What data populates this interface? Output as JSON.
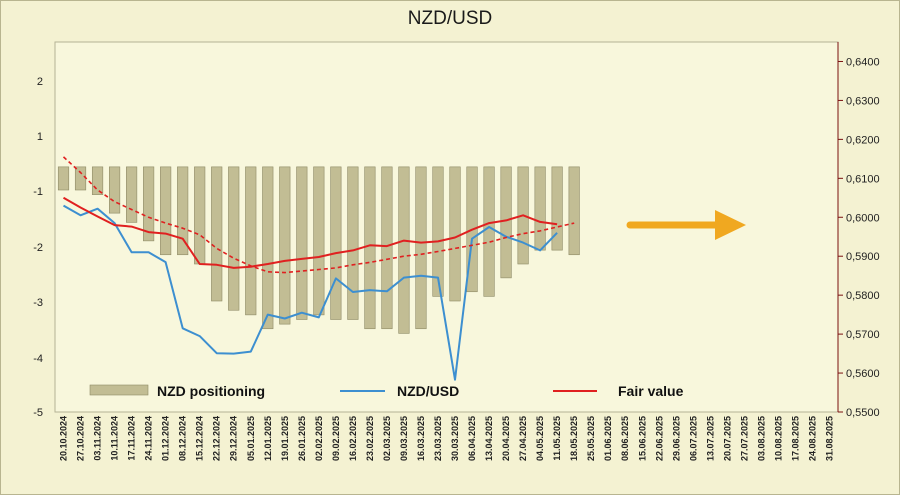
{
  "chart_data": {
    "type": "bar+line",
    "title": "NZD/USD",
    "x_dates": [
      "20.10.2024",
      "27.10.2024",
      "03.11.2024",
      "10.11.2024",
      "17.11.2024",
      "24.11.2024",
      "01.12.2024",
      "08.12.2024",
      "15.12.2024",
      "22.12.2024",
      "29.12.2024",
      "05.01.2025",
      "12.01.2025",
      "19.01.2025",
      "26.01.2025",
      "02.02.2025",
      "09.02.2025",
      "16.02.2025",
      "23.02.2025",
      "02.03.2025",
      "09.03.2025",
      "16.03.2025",
      "23.03.2025",
      "30.03.2025",
      "06.04.2025",
      "13.04.2025",
      "20.04.2025",
      "27.04.2025",
      "04.05.2025",
      "11.05.2025",
      "18.05.2025",
      "25.05.2025",
      "01.06.2025",
      "08.06.2025",
      "15.06.2025",
      "22.06.2025",
      "29.06.2025",
      "06.07.2025",
      "13.07.2025",
      "20.07.2025",
      "27.07.2025",
      "03.08.2025",
      "10.08.2025",
      "17.08.2025",
      "24.08.2025",
      "31.08.2025"
    ],
    "left_axis": {
      "min": -5,
      "max": 3,
      "ticks": [
        "2",
        "1",
        "-1",
        "-2",
        "-3",
        "-4",
        "-5"
      ]
    },
    "right_axis": {
      "min": 0.55,
      "max": 0.645,
      "ticks": [
        "0,6400",
        "0,6300",
        "0,6200",
        "0,6100",
        "0,6000",
        "0,5900",
        "0,5800",
        "0,5700",
        "0,5600",
        "0,5500"
      ]
    },
    "series": [
      {
        "name": "NZD positioning",
        "type": "bar",
        "axis": "left",
        "color": "#c2bd94",
        "values": [
          -0.2,
          -0.2,
          -0.3,
          -0.7,
          -0.9,
          -1.3,
          -1.6,
          -1.6,
          -1.8,
          -2.6,
          -2.8,
          -2.9,
          -3.2,
          -3.1,
          -3.0,
          -2.9,
          -3.0,
          -3.0,
          -3.2,
          -3.2,
          -3.3,
          -3.2,
          -2.5,
          -2.6,
          -2.4,
          -2.5,
          -2.1,
          -1.8,
          -1.5,
          -1.5,
          -1.6
        ]
      },
      {
        "name": "NZD/USD",
        "type": "line",
        "axis": "right",
        "color": "#3d8fd0",
        "values": [
          0.603,
          0.6005,
          0.6022,
          0.5985,
          0.591,
          0.591,
          0.5885,
          0.5715,
          0.5695,
          0.5651,
          0.565,
          0.5655,
          0.575,
          0.574,
          0.5755,
          0.5743,
          0.5843,
          0.5808,
          0.5813,
          0.581,
          0.5845,
          0.585,
          0.5845,
          0.5583,
          0.5945,
          0.5975,
          0.595,
          0.5935,
          0.5915,
          0.596
        ]
      },
      {
        "name": "Fair value",
        "type": "line",
        "axis": "right",
        "color": "#e02020",
        "values": [
          0.605,
          0.6025,
          0.6002,
          0.598,
          0.5976,
          0.5962,
          0.5958,
          0.5945,
          0.588,
          0.5878,
          0.587,
          0.5873,
          0.588,
          0.5888,
          0.5893,
          0.5898,
          0.5908,
          0.5915,
          0.5928,
          0.5926,
          0.594,
          0.5935,
          0.5938,
          0.5948,
          0.5968,
          0.5985,
          0.5992,
          0.6005,
          0.5988,
          0.5982
        ]
      },
      {
        "name": "Fair value (dashed)",
        "type": "line",
        "axis": "right",
        "color": "#e02020",
        "dashed": true,
        "values": [
          0.6155,
          0.6115,
          0.607,
          0.604,
          0.602,
          0.6,
          0.5985,
          0.5972,
          0.5955,
          0.592,
          0.5895,
          0.5875,
          0.586,
          0.5858,
          0.5862,
          0.5866,
          0.587,
          0.5878,
          0.5884,
          0.5892,
          0.59,
          0.5905,
          0.5912,
          0.592,
          0.5928,
          0.5936,
          0.5948,
          0.5958,
          0.5965,
          0.5975,
          0.5985
        ]
      }
    ],
    "legend": [
      {
        "name": "NZD positioning",
        "type": "bar"
      },
      {
        "name": "NZD/USD",
        "type": "line"
      },
      {
        "name": "Fair value",
        "type": "line"
      }
    ],
    "annotation": {
      "type": "arrow",
      "direction": "right",
      "color": "#f0a820"
    },
    "grid": false
  }
}
